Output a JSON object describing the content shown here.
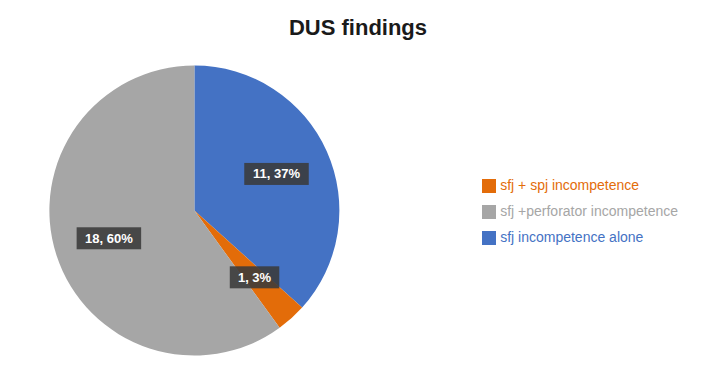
{
  "chart_data": {
    "type": "pie",
    "title": "DUS findings",
    "categories": [
      "sfj incompetence alone",
      "sfj + spj incompetence",
      "sfj +perforator incompetence"
    ],
    "values": [
      11,
      1,
      18
    ],
    "value_labels": [
      "11, 37%",
      "1, 3%",
      "18, 60%"
    ],
    "colors": [
      "#4472C4",
      "#E36C09",
      "#A6A6A6"
    ],
    "data_labels": true,
    "legend": "right"
  }
}
